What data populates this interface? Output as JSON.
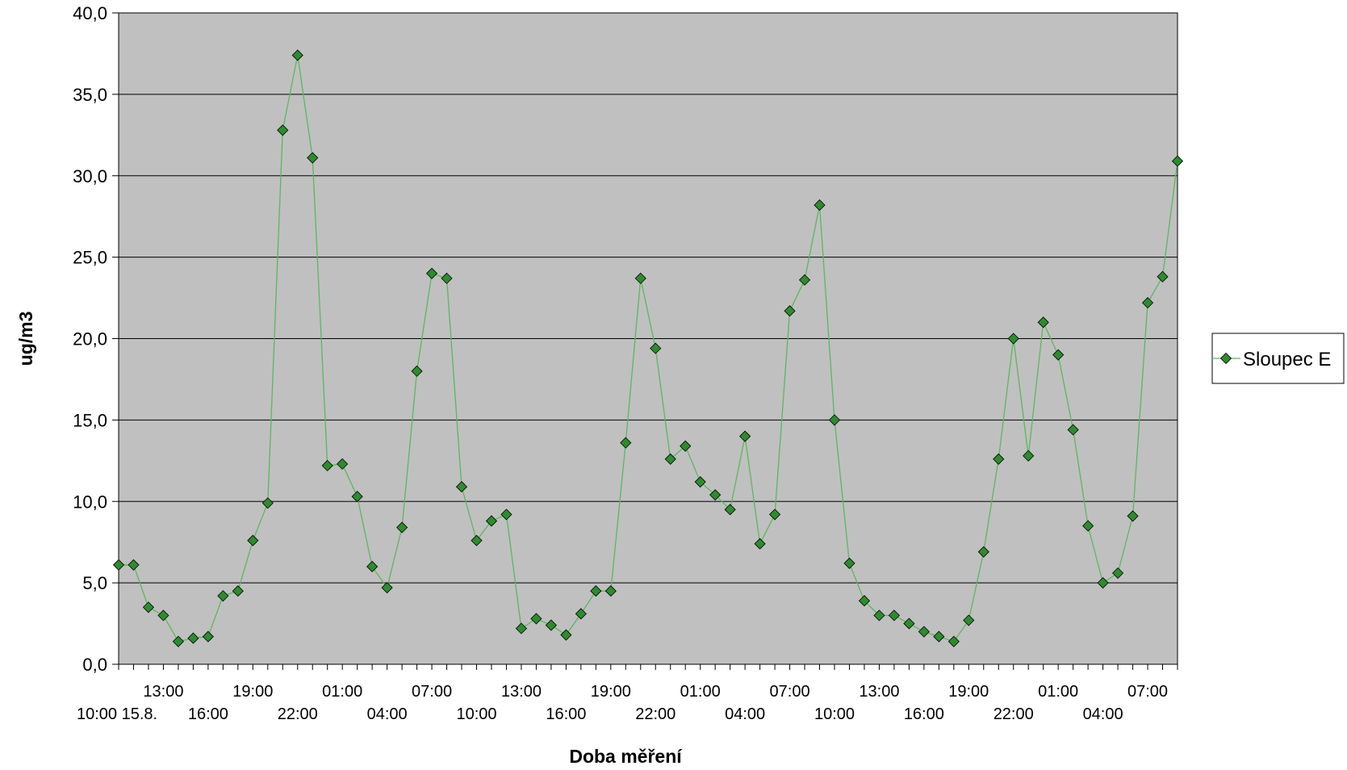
{
  "chart_data": {
    "type": "line",
    "title": "",
    "xlabel": "Doba měření",
    "ylabel": "ug/m3",
    "ylim": [
      0,
      40
    ],
    "y_ticks": [
      "0,0",
      "5,0",
      "10,0",
      "15,0",
      "20,0",
      "25,0",
      "30,0",
      "35,0",
      "40,0"
    ],
    "x_tick_labels_row1": [
      {
        "index": 3,
        "label": "13:00"
      },
      {
        "index": 9,
        "label": "19:00"
      },
      {
        "index": 15,
        "label": "01:00"
      },
      {
        "index": 21,
        "label": "07:00"
      },
      {
        "index": 27,
        "label": "13:00"
      },
      {
        "index": 33,
        "label": "19:00"
      },
      {
        "index": 39,
        "label": "01:00"
      },
      {
        "index": 45,
        "label": "07:00"
      },
      {
        "index": 51,
        "label": "13:00"
      },
      {
        "index": 57,
        "label": "19:00"
      },
      {
        "index": 63,
        "label": "01:00"
      },
      {
        "index": 69,
        "label": "07:00"
      }
    ],
    "x_tick_labels_row2": [
      {
        "index": 0,
        "label": "10:00 15.8."
      },
      {
        "index": 6,
        "label": "16:00"
      },
      {
        "index": 12,
        "label": "22:00"
      },
      {
        "index": 18,
        "label": "04:00"
      },
      {
        "index": 24,
        "label": "10:00"
      },
      {
        "index": 30,
        "label": "16:00"
      },
      {
        "index": 36,
        "label": "22:00"
      },
      {
        "index": 42,
        "label": "04:00"
      },
      {
        "index": 48,
        "label": "10:00"
      },
      {
        "index": 54,
        "label": "16:00"
      },
      {
        "index": 60,
        "label": "22:00"
      },
      {
        "index": 66,
        "label": "04:00"
      }
    ],
    "grid": true,
    "legend_position": "right",
    "series": [
      {
        "name": "Sloupec E",
        "color": "#2e8b2e",
        "line_color": "#5cb85c",
        "marker": "diamond",
        "values": [
          6.1,
          6.1,
          3.5,
          3.0,
          1.4,
          1.6,
          1.7,
          4.2,
          4.5,
          7.6,
          9.9,
          32.8,
          37.4,
          31.1,
          12.2,
          12.3,
          10.3,
          6.0,
          4.7,
          8.4,
          18.0,
          24.0,
          23.7,
          10.9,
          7.6,
          8.8,
          9.2,
          2.2,
          2.8,
          2.4,
          1.8,
          3.1,
          4.5,
          4.5,
          13.6,
          23.7,
          19.4,
          12.6,
          13.4,
          11.2,
          10.4,
          9.5,
          14.0,
          7.4,
          9.2,
          21.7,
          23.6,
          28.2,
          15.0,
          6.2,
          3.9,
          3.0,
          3.0,
          2.5,
          2.0,
          1.7,
          1.4,
          2.7,
          6.9,
          12.6,
          20.0,
          12.8,
          21.0,
          19.0,
          14.4,
          8.5,
          5.0,
          5.6,
          9.1,
          22.2,
          23.8,
          30.9
        ]
      }
    ]
  }
}
